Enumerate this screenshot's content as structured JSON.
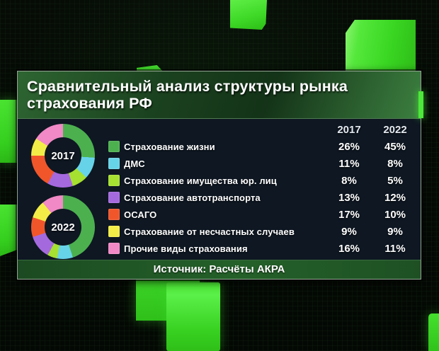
{
  "title": {
    "line1": "Сравнительный анализ структуры рынка",
    "line2": "страхования РФ"
  },
  "source_bar": {
    "text": "Источник: Расчёты АКРА"
  },
  "chart_data": {
    "type": "pie",
    "subtype": "double-donut",
    "title": "Сравнительный анализ структуры рынка страхования РФ",
    "categories": [
      "Страхование жизни",
      "ДМС",
      "Страхование имущества юр. лиц",
      "Страхование автотранспорта",
      "ОСАГО",
      "Страхование от несчастных случаев",
      "Прочие виды страхования"
    ],
    "segment_colors": [
      "#4cb04f",
      "#67d3e9",
      "#a6e030",
      "#a569de",
      "#f1562b",
      "#f3ed47",
      "#f089c5"
    ],
    "series": [
      {
        "name": "2017",
        "values": [
          26,
          11,
          8,
          13,
          17,
          9,
          16
        ]
      },
      {
        "name": "2022",
        "values": [
          45,
          8,
          5,
          12,
          10,
          9,
          11
        ]
      }
    ],
    "unit": "%",
    "value_columns_headers": [
      "2017",
      "2022"
    ],
    "legend_position": "right",
    "source": "Источник: Расчёты АКРА"
  },
  "colors": {
    "accent_green": "#3fe22c",
    "panel_background": "#0e1722",
    "titlebar_green": "#2e6532",
    "sourcebar_green": "#246129",
    "hole_background": "#0e1722"
  }
}
